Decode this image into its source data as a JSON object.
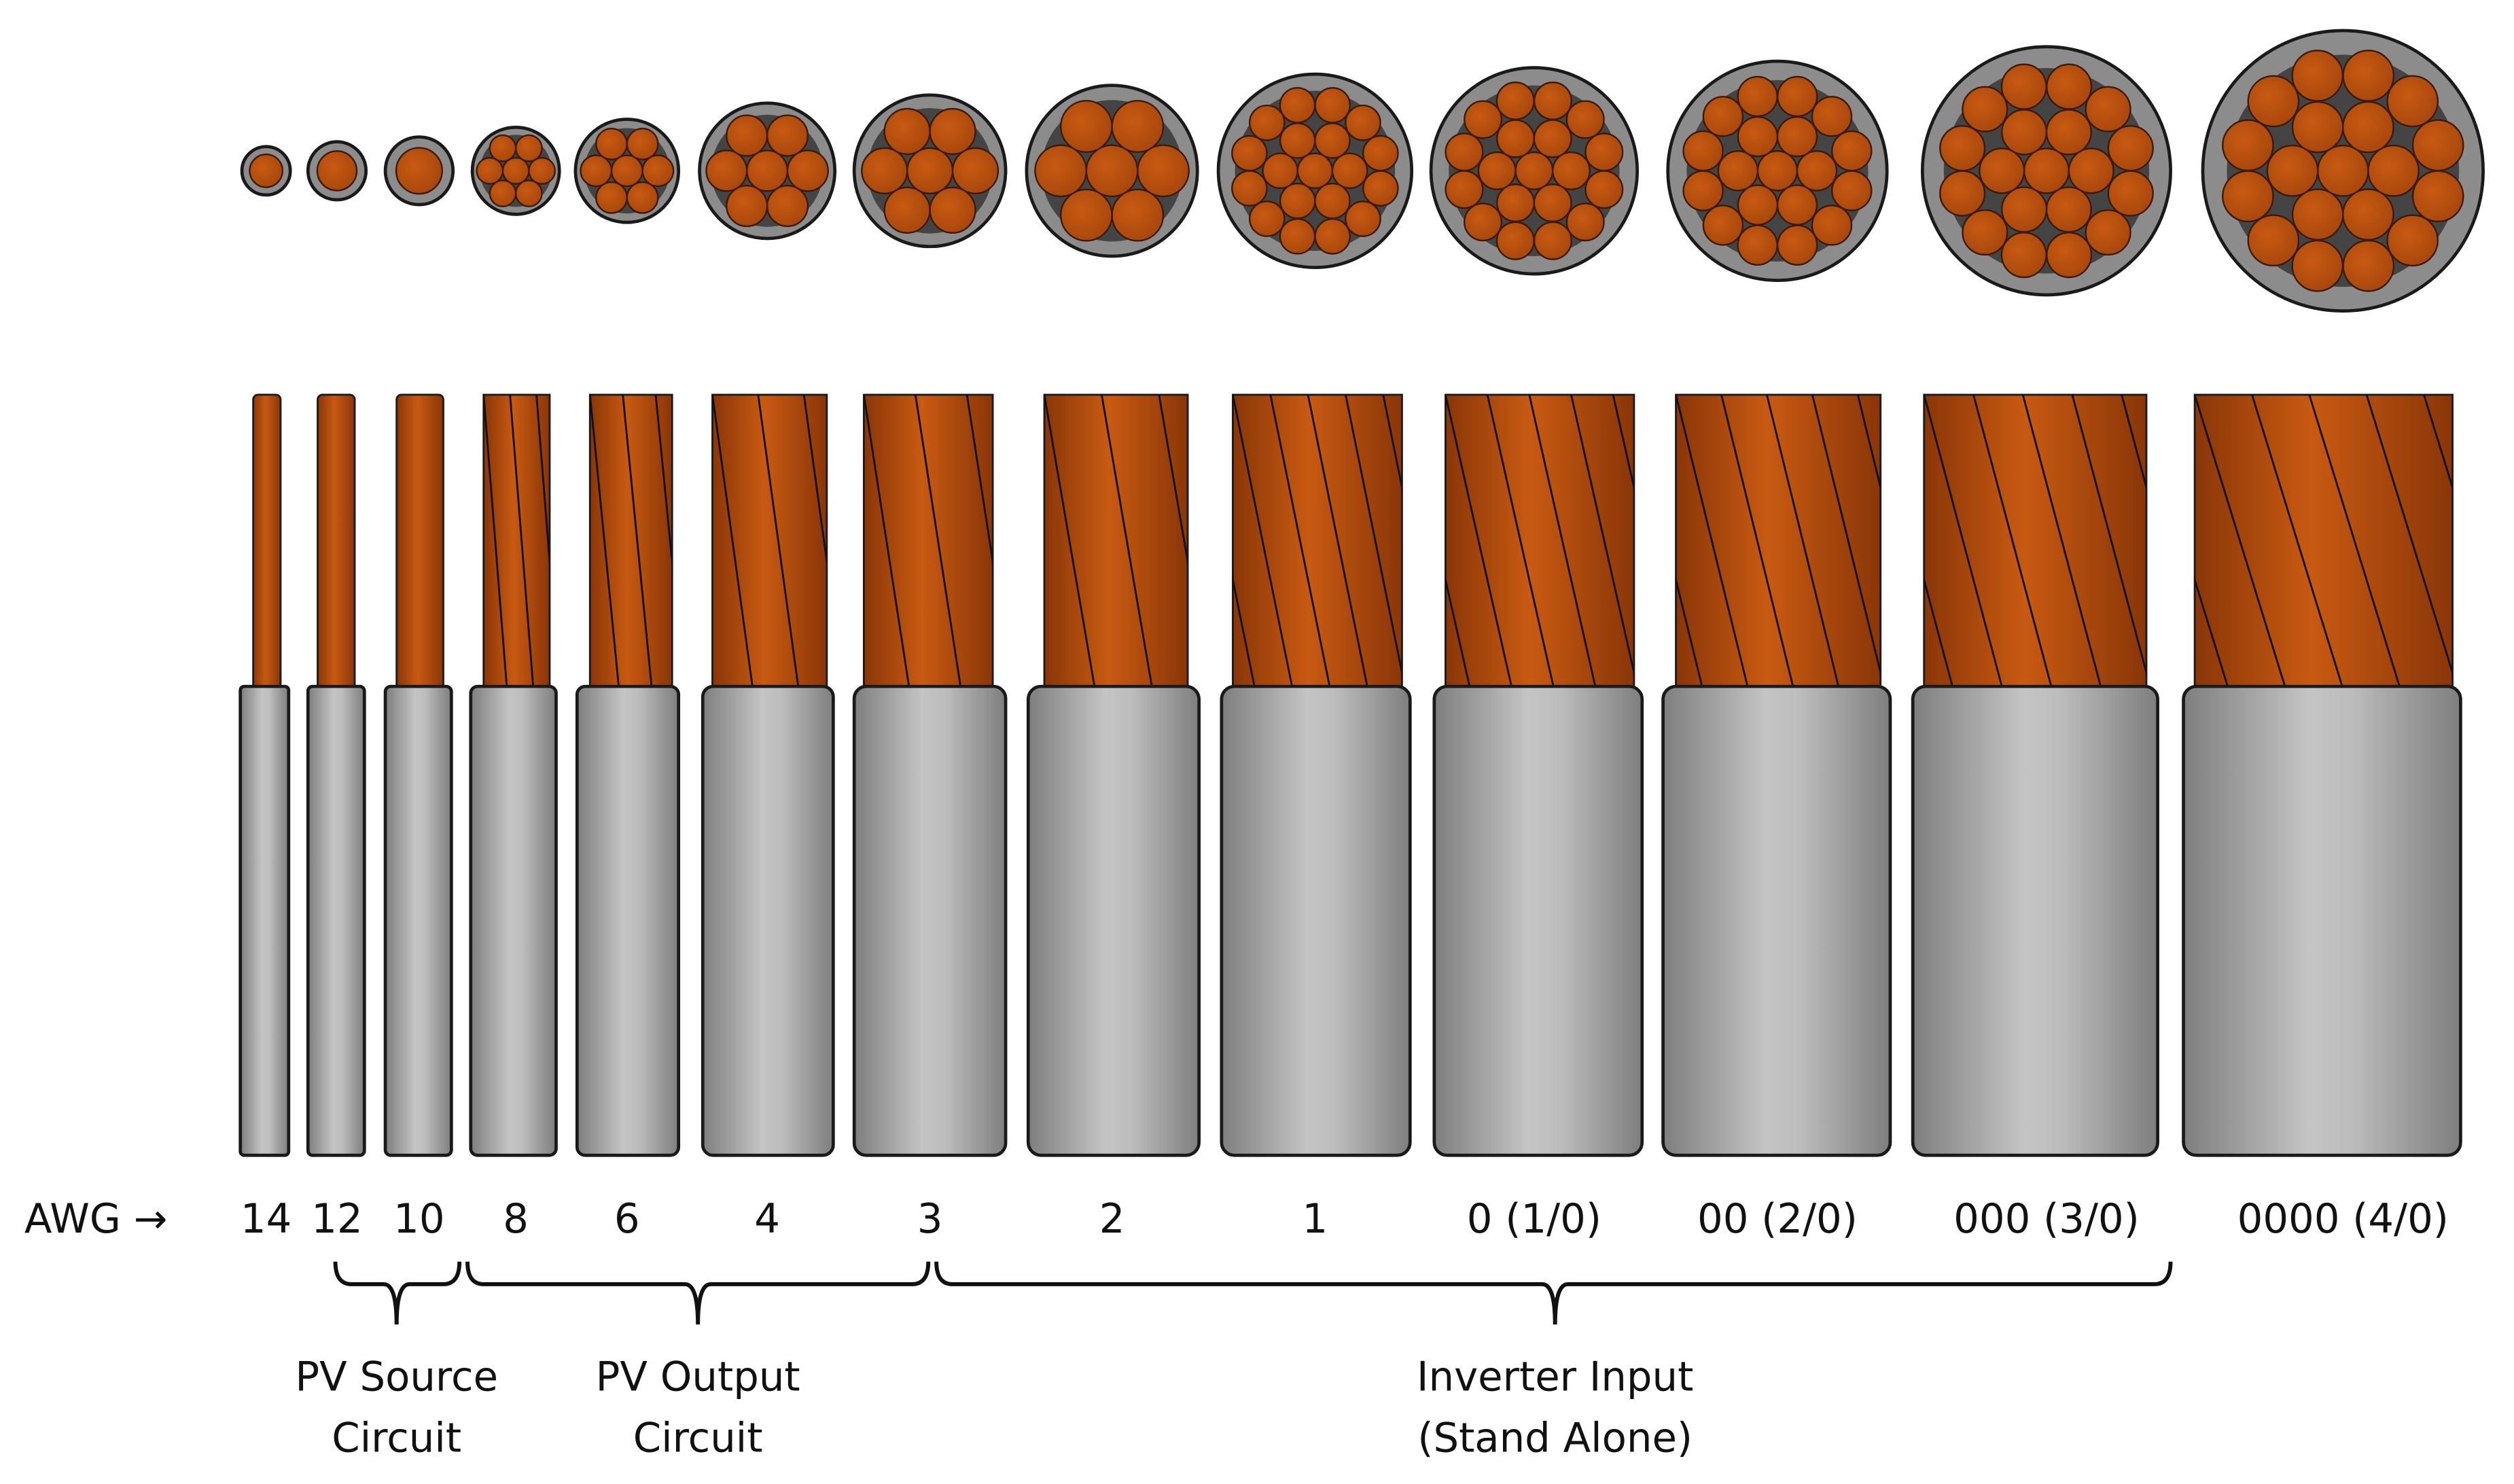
{
  "axis_label": "AWG →",
  "colors": {
    "copper_center": "#c85a12",
    "copper_edge": "#8a3608",
    "insulation_light": "#c4c4c4",
    "insulation_dark": "#7e7e7e",
    "cross_section_jacket": "#8c8c8c",
    "outline": "#1a1a1a"
  },
  "wires": [
    {
      "label": "14",
      "stranding": "solid"
    },
    {
      "label": "12",
      "stranding": "solid"
    },
    {
      "label": "10",
      "stranding": "solid"
    },
    {
      "label": "8",
      "stranding": 7
    },
    {
      "label": "6",
      "stranding": 7
    },
    {
      "label": "4",
      "stranding": 7
    },
    {
      "label": "3",
      "stranding": 7
    },
    {
      "label": "2",
      "stranding": 7
    },
    {
      "label": "1",
      "stranding": 19
    },
    {
      "label": "0 (1/0)",
      "stranding": 19
    },
    {
      "label": "00 (2/0)",
      "stranding": 19
    },
    {
      "label": "000 (3/0)",
      "stranding": 19
    },
    {
      "label": "0000 (4/0)",
      "stranding": 19
    }
  ],
  "groups": [
    {
      "line1": "PV Source",
      "line2": "Circuit",
      "from": "12",
      "to": "10"
    },
    {
      "line1": "PV Output",
      "line2": "Circuit",
      "from": "8",
      "to": "3"
    },
    {
      "line1": "Inverter Input",
      "line2": "(Stand Alone)",
      "from": "2",
      "to": "000 (3/0)"
    }
  ]
}
